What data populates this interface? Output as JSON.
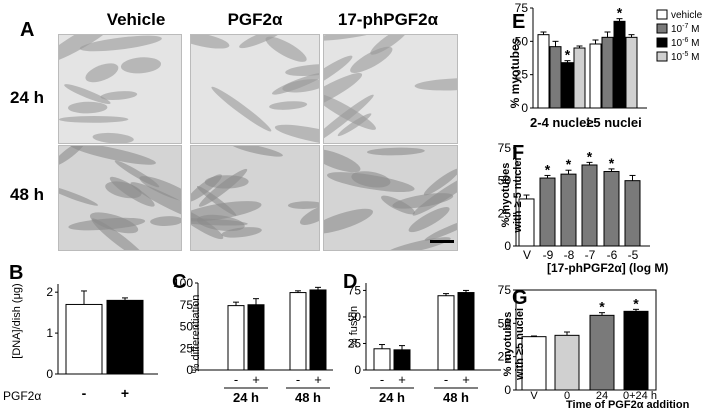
{
  "panel_A": {
    "label": "A",
    "columns": [
      "Vehicle",
      "PGF2α",
      "17-phPGF2α"
    ],
    "rows": [
      "24 h",
      "48 h"
    ]
  },
  "panel_B": {
    "label": "B",
    "ylabel": "[DNA]/dish (μg)",
    "xlabel": "PGF2α",
    "categories": [
      "-",
      "+"
    ]
  },
  "panel_C": {
    "label": "C",
    "ylabel": "% differentiation",
    "group_labels": [
      "24 h",
      "48 h"
    ],
    "categories": [
      "-",
      "+",
      "-",
      "+"
    ]
  },
  "panel_D": {
    "label": "D",
    "ylabel": "% fusion",
    "group_labels": [
      "24 h",
      "48 h"
    ],
    "categories": [
      "-",
      "+",
      "-",
      "+"
    ]
  },
  "panel_E": {
    "label": "E",
    "ylabel": "% myotubes",
    "group_labels": [
      "2-4 nuclei",
      "≥5 nuclei"
    ],
    "legend": [
      "vehicle",
      "10-7 M",
      "10-6 M",
      "10-5 M"
    ]
  },
  "panel_F": {
    "label": "F",
    "ylabel": "% myotubes with ≥ 5 nuclei",
    "xlabel": "[17-phPGF2α] (log M)",
    "categories": [
      "V",
      "-9",
      "-8",
      "-7",
      "-6",
      "-5"
    ]
  },
  "panel_G": {
    "label": "G",
    "ylabel": "% myotubes with ≥5 nuclei",
    "xlabel": "Time of PGF2α addition",
    "categories": [
      "V",
      "0",
      "24",
      "0+24 h"
    ]
  },
  "chart_data": [
    {
      "id": "B",
      "type": "bar",
      "categories": [
        "-",
        "+"
      ],
      "values": [
        1.7,
        1.8
      ],
      "errors": [
        0.33,
        0.06
      ],
      "colors": [
        "#ffffff",
        "#000000"
      ],
      "ylim": [
        0,
        2.2
      ],
      "yticks": [
        0,
        1,
        2
      ]
    },
    {
      "id": "C",
      "type": "bar",
      "categories": [
        "-",
        "+",
        "-",
        "+"
      ],
      "values": [
        74,
        75,
        89,
        92
      ],
      "errors": [
        4,
        7,
        2,
        3
      ],
      "colors": [
        "#ffffff",
        "#000000",
        "#ffffff",
        "#000000"
      ],
      "ylim": [
        0,
        100
      ],
      "yticks": [
        0,
        25,
        50,
        75,
        100
      ]
    },
    {
      "id": "D",
      "type": "bar",
      "categories": [
        "-",
        "+",
        "-",
        "+"
      ],
      "values": [
        20,
        19,
        70,
        73
      ],
      "errors": [
        4,
        4,
        2,
        2
      ],
      "colors": [
        "#ffffff",
        "#000000",
        "#ffffff",
        "#000000"
      ],
      "ylim": [
        0,
        82
      ],
      "yticks": [
        0,
        25,
        50,
        75
      ]
    },
    {
      "id": "E",
      "type": "bar",
      "categories": [
        "2-4 nuclei",
        "≥5 nuclei"
      ],
      "series": [
        {
          "name": "vehicle",
          "color": "#ffffff",
          "values": [
            55,
            48
          ],
          "errors": [
            2,
            3
          ]
        },
        {
          "name": "10-7 M",
          "color": "#7a7a7a",
          "values": [
            46,
            53
          ],
          "errors": [
            4,
            4
          ]
        },
        {
          "name": "10-6 M",
          "color": "#000000",
          "values": [
            34,
            65
          ],
          "errors": [
            1.5,
            2
          ]
        },
        {
          "name": "10-5 M",
          "color": "#d0d0d0",
          "values": [
            45,
            53
          ],
          "errors": [
            1.5,
            2
          ]
        }
      ],
      "significant": [
        [
          false,
          false,
          true,
          false
        ],
        [
          false,
          false,
          true,
          false
        ]
      ],
      "ylim": [
        0,
        75
      ],
      "yticks": [
        0,
        25,
        50,
        75
      ]
    },
    {
      "id": "F",
      "type": "bar",
      "categories": [
        "V",
        "-9",
        "-8",
        "-7",
        "-6",
        "-5"
      ],
      "values": [
        36,
        52,
        55,
        62,
        57,
        50
      ],
      "errors": [
        3,
        2,
        3,
        2,
        2,
        4
      ],
      "colors": [
        "#ffffff",
        "#7a7a7a",
        "#7a7a7a",
        "#7a7a7a",
        "#7a7a7a",
        "#7a7a7a"
      ],
      "significant": [
        false,
        true,
        true,
        true,
        true,
        false
      ],
      "ylim": [
        0,
        75
      ],
      "yticks": [
        0,
        25,
        50,
        75
      ]
    },
    {
      "id": "G",
      "type": "bar",
      "categories": [
        "V",
        "0",
        "24",
        "0+24 h"
      ],
      "values": [
        40,
        41,
        56,
        59
      ],
      "errors": [
        0.5,
        2.5,
        2,
        1.5
      ],
      "colors": [
        "#ffffff",
        "#d0d0d0",
        "#7a7a7a",
        "#000000"
      ],
      "significant": [
        false,
        false,
        true,
        true
      ],
      "ylim": [
        0,
        75
      ],
      "yticks": [
        0,
        25,
        50,
        75
      ]
    }
  ]
}
